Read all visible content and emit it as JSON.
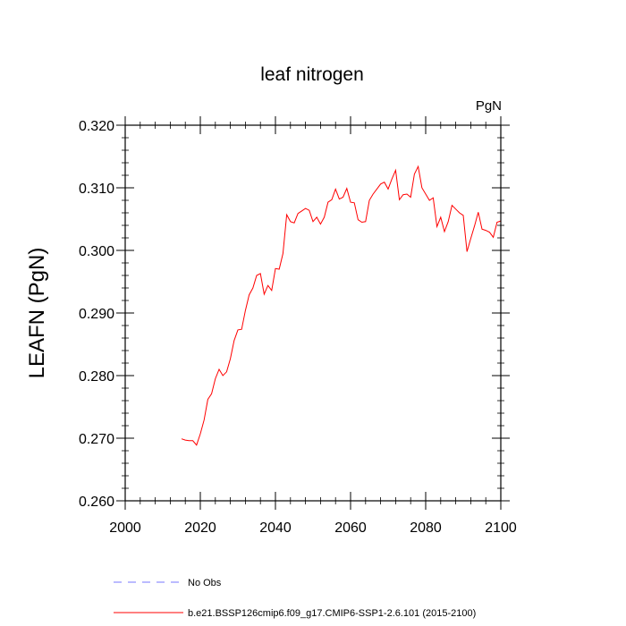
{
  "chart_data": {
    "type": "line",
    "title": "leaf nitrogen",
    "units": "PgN",
    "ylabel": "LEAFN  (PgN)",
    "xlabel": "",
    "xlim": [
      2000,
      2100
    ],
    "ylim": [
      0.26,
      0.32
    ],
    "x_ticks": [
      2000,
      2020,
      2040,
      2060,
      2080,
      2100
    ],
    "x_tick_labels": [
      "2000",
      "2020",
      "2040",
      "2060",
      "2080",
      "2100"
    ],
    "y_ticks": [
      0.26,
      0.27,
      0.28,
      0.29,
      0.3,
      0.31,
      0.32
    ],
    "y_tick_labels": [
      "0.260",
      "0.270",
      "0.280",
      "0.290",
      "0.300",
      "0.310",
      "0.320"
    ],
    "legend": [
      {
        "label": "No Obs",
        "color": "#7777ff",
        "style": "dashed"
      },
      {
        "label": "b.e21.BSSP126cmip6.f09_g17.CMIP6-SSP1-2.6.101 (2015-2100)",
        "color": "#ff0000",
        "style": "solid"
      }
    ],
    "series": [
      {
        "name": "b.e21.BSSP126cmip6.f09_g17.CMIP6-SSP1-2.6.101 (2015-2100)",
        "color": "#ff0000",
        "x": [
          2015,
          2016,
          2017,
          2018,
          2019,
          2020,
          2021,
          2022,
          2023,
          2024,
          2025,
          2026,
          2027,
          2028,
          2029,
          2030,
          2031,
          2032,
          2033,
          2034,
          2035,
          2036,
          2037,
          2038,
          2039,
          2040,
          2041,
          2042,
          2043,
          2044,
          2045,
          2046,
          2047,
          2048,
          2049,
          2050,
          2051,
          2052,
          2053,
          2054,
          2055,
          2056,
          2057,
          2058,
          2059,
          2060,
          2061,
          2062,
          2063,
          2064,
          2065,
          2066,
          2067,
          2068,
          2069,
          2070,
          2071,
          2072,
          2073,
          2074,
          2075,
          2076,
          2077,
          2078,
          2079,
          2080,
          2081,
          2082,
          2083,
          2084,
          2085,
          2086,
          2087,
          2088,
          2089,
          2090,
          2091,
          2092,
          2093,
          2094,
          2095,
          2096,
          2097,
          2098,
          2099,
          2100
        ],
        "y": [
          0.2699,
          0.2697,
          0.2696,
          0.2696,
          0.2689,
          0.2707,
          0.2729,
          0.2762,
          0.2771,
          0.2795,
          0.281,
          0.28,
          0.2806,
          0.2827,
          0.2856,
          0.2873,
          0.2874,
          0.2904,
          0.2929,
          0.294,
          0.296,
          0.2963,
          0.293,
          0.2944,
          0.2936,
          0.2971,
          0.297,
          0.2995,
          0.3057,
          0.3046,
          0.3044,
          0.3059,
          0.3063,
          0.3067,
          0.3064,
          0.3046,
          0.3053,
          0.3042,
          0.3053,
          0.3077,
          0.3081,
          0.3098,
          0.3082,
          0.3085,
          0.3099,
          0.3077,
          0.3076,
          0.3049,
          0.3045,
          0.3046,
          0.308,
          0.309,
          0.3098,
          0.3106,
          0.3109,
          0.3098,
          0.3114,
          0.3128,
          0.3081,
          0.3089,
          0.309,
          0.3085,
          0.3122,
          0.3134,
          0.31,
          0.309,
          0.308,
          0.3084,
          0.3038,
          0.3053,
          0.303,
          0.3046,
          0.3072,
          0.3066,
          0.306,
          0.3056,
          0.2998,
          0.3019,
          0.3039,
          0.3061,
          0.3034,
          0.3032,
          0.3029,
          0.3021,
          0.3045,
          0.3047
        ]
      }
    ]
  }
}
